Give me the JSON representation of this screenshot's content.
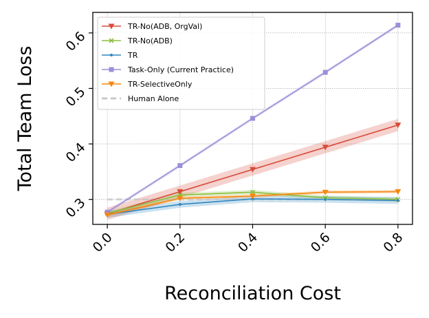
{
  "chart_data": {
    "type": "line",
    "xlabel": "Reconciliation Cost",
    "ylabel": "Total Team Loss",
    "xlim": [
      -0.04,
      0.84
    ],
    "ylim": [
      0.255,
      0.637
    ],
    "xticks": [
      0.0,
      0.2,
      0.4,
      0.6,
      0.8
    ],
    "xtick_labels": [
      "0.0",
      "0.2",
      "0.4",
      "0.6",
      "0.8"
    ],
    "yticks": [
      0.3,
      0.4,
      0.5,
      0.6
    ],
    "ytick_labels": [
      "0.3",
      "0.4",
      "0.5",
      "0.6"
    ],
    "grid": true,
    "legend_position": "top-left",
    "x": [
      0.0,
      0.2,
      0.4,
      0.6,
      0.8
    ],
    "series": [
      {
        "name": "TR-No(ADB, OrgVal)",
        "color": "#d94b3a",
        "marker": "triangle-down",
        "values": [
          0.274,
          0.314,
          0.354,
          0.394,
          0.434
        ],
        "band": 0.011
      },
      {
        "name": "TR-No(ADB)",
        "color": "#8cbf3f",
        "marker": "x",
        "values": [
          0.275,
          0.308,
          0.313,
          0.303,
          0.3
        ],
        "band": 0.004
      },
      {
        "name": "TR",
        "color": "#2e86c1",
        "marker": "dot",
        "values": [
          0.273,
          0.291,
          0.301,
          0.3,
          0.298
        ],
        "band": 0.006
      },
      {
        "name": "Task-Only (Current Practice)",
        "color": "#9a8fd8",
        "marker": "square",
        "values": [
          0.277,
          0.361,
          0.446,
          0.529,
          0.614
        ],
        "band": 0.003
      },
      {
        "name": "TR-SelectiveOnly",
        "color": "#f5870f",
        "marker": "triangle-down",
        "values": [
          0.272,
          0.302,
          0.306,
          0.313,
          0.314
        ],
        "band": 0.003
      },
      {
        "name": "Human Alone",
        "color": "#c8c8c8",
        "marker": "none",
        "dashed": true,
        "values": [
          0.3,
          0.3,
          0.3,
          0.3,
          0.3
        ],
        "band": 0
      }
    ]
  }
}
